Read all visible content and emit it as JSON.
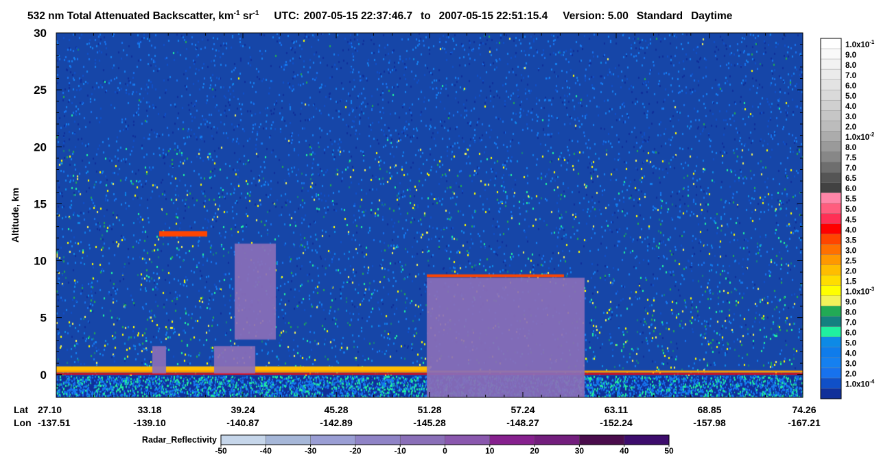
{
  "title": {
    "product": "532 nm Total Attenuated Backscatter, km",
    "unit_sup1": "-1",
    "unit_mid": " sr",
    "unit_sup2": "-1",
    "utc_label": "UTC:",
    "utc_start": "2007-05-15 22:37:46.7",
    "to": "to",
    "utc_end": "2007-05-15 22:51:15.4",
    "version": "Version: 5.00",
    "standard": "Standard",
    "daytime": "Daytime"
  },
  "chart_data": {
    "type": "heatmap",
    "ylabel": "Altitude, km",
    "ylim": [
      -2,
      30
    ],
    "y_ticks": [
      "30",
      "25",
      "20",
      "15",
      "10",
      "5",
      "0"
    ],
    "x_row_labels": [
      "Lat",
      "Lon"
    ],
    "x_ticks": [
      {
        "lat": "27.10",
        "lon": "-137.51"
      },
      {
        "lat": "33.18",
        "lon": "-139.10"
      },
      {
        "lat": "39.24",
        "lon": "-140.87"
      },
      {
        "lat": "45.28",
        "lon": "-142.89"
      },
      {
        "lat": "51.28",
        "lon": "-145.28"
      },
      {
        "lat": "57.24",
        "lon": "-148.27"
      },
      {
        "lat": "63.11",
        "lon": "-152.24"
      },
      {
        "lat": "68.85",
        "lon": "-157.98"
      },
      {
        "lat": "74.26",
        "lon": "-167.21"
      }
    ],
    "backscatter_colorbar": {
      "labels": [
        {
          "base": "1.0x10",
          "exp": "-1"
        },
        {
          "base": "9.0"
        },
        {
          "base": "8.0"
        },
        {
          "base": "7.0"
        },
        {
          "base": "6.0"
        },
        {
          "base": "5.0"
        },
        {
          "base": "4.0"
        },
        {
          "base": "3.0"
        },
        {
          "base": "2.0"
        },
        {
          "base": "1.0x10",
          "exp": "-2"
        },
        {
          "base": "8.0"
        },
        {
          "base": "7.5"
        },
        {
          "base": "7.0"
        },
        {
          "base": "6.5"
        },
        {
          "base": "6.0"
        },
        {
          "base": "5.5"
        },
        {
          "base": "5.0"
        },
        {
          "base": "4.5"
        },
        {
          "base": "4.0"
        },
        {
          "base": "3.5"
        },
        {
          "base": "3.0"
        },
        {
          "base": "2.5"
        },
        {
          "base": "2.0"
        },
        {
          "base": "1.5"
        },
        {
          "base": "1.0x10",
          "exp": "-3"
        },
        {
          "base": "9.0"
        },
        {
          "base": "8.0"
        },
        {
          "base": "7.0"
        },
        {
          "base": "6.0"
        },
        {
          "base": "5.0"
        },
        {
          "base": "4.0"
        },
        {
          "base": "3.0"
        },
        {
          "base": "2.0"
        },
        {
          "base": "1.0x10",
          "exp": "-4"
        }
      ],
      "colors": [
        "#ffffff",
        "#f9f9f9",
        "#f2f2f2",
        "#ebebeb",
        "#e3e3e3",
        "#dadada",
        "#d0d0d0",
        "#c6c6c6",
        "#bcbcbc",
        "#acacac",
        "#9a9a9a",
        "#878787",
        "#6e6e6e",
        "#555555",
        "#424242",
        "#ff86a8",
        "#ff5d7e",
        "#ff3055",
        "#ff0000",
        "#ff4500",
        "#ff7000",
        "#ff9800",
        "#ffbd00",
        "#ffdd00",
        "#ffff00",
        "#f2f25a",
        "#22aa55",
        "#148080",
        "#20f0a0",
        "#0d8ae6",
        "#0f7ceb",
        "#1580f0",
        "#1772ee",
        "#1050c8",
        "#10309a"
      ]
    },
    "radar_colorbar": {
      "label": "Radar_Reflectivity",
      "ticks": [
        "-50",
        "-40",
        "-30",
        "-20",
        "-10",
        "0",
        "10",
        "20",
        "30",
        "40",
        "50"
      ],
      "colors": [
        "#c6d6ea",
        "#a6b7d8",
        "#9a9ed4",
        "#8f83c6",
        "#8a6fb8",
        "#8a58ae",
        "#86208e",
        "#731e7d",
        "#4a0c4c",
        "#3d0c6c"
      ]
    }
  }
}
